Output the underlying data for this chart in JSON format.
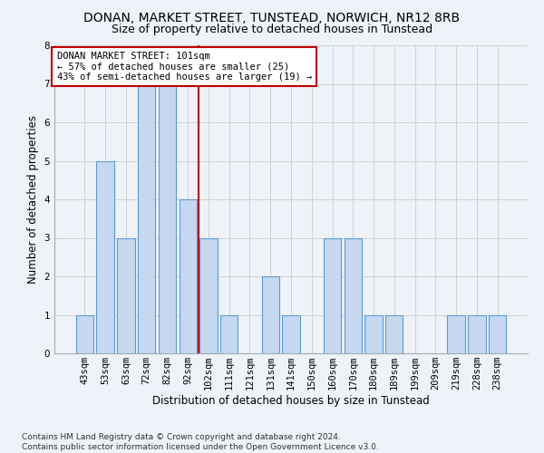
{
  "title": "DONAN, MARKET STREET, TUNSTEAD, NORWICH, NR12 8RB",
  "subtitle": "Size of property relative to detached houses in Tunstead",
  "xlabel": "Distribution of detached houses by size in Tunstead",
  "ylabel": "Number of detached properties",
  "categories": [
    "43sqm",
    "53sqm",
    "63sqm",
    "72sqm",
    "82sqm",
    "92sqm",
    "102sqm",
    "111sqm",
    "121sqm",
    "131sqm",
    "141sqm",
    "150sqm",
    "160sqm",
    "170sqm",
    "180sqm",
    "189sqm",
    "199sqm",
    "209sqm",
    "219sqm",
    "228sqm",
    "238sqm"
  ],
  "values": [
    1,
    5,
    3,
    7,
    7,
    4,
    3,
    1,
    0,
    2,
    1,
    0,
    3,
    3,
    1,
    1,
    0,
    0,
    1,
    1,
    1
  ],
  "bar_color": "#c5d8f0",
  "bar_edge_color": "#5b9bd5",
  "grid_color": "#cccccc",
  "bg_color": "#eef2f9",
  "vline_x_index": 5.5,
  "vline_color": "#c00000",
  "ylim": [
    0,
    8
  ],
  "yticks": [
    0,
    1,
    2,
    3,
    4,
    5,
    6,
    7,
    8
  ],
  "annotation_box_text": "DONAN MARKET STREET: 101sqm\n← 57% of detached houses are smaller (25)\n43% of semi-detached houses are larger (19) →",
  "footnote": "Contains HM Land Registry data © Crown copyright and database right 2024.\nContains public sector information licensed under the Open Government Licence v3.0.",
  "title_fontsize": 10,
  "subtitle_fontsize": 9,
  "xlabel_fontsize": 8.5,
  "ylabel_fontsize": 8.5,
  "tick_fontsize": 7.5,
  "annotation_fontsize": 7.5,
  "footnote_fontsize": 6.5
}
